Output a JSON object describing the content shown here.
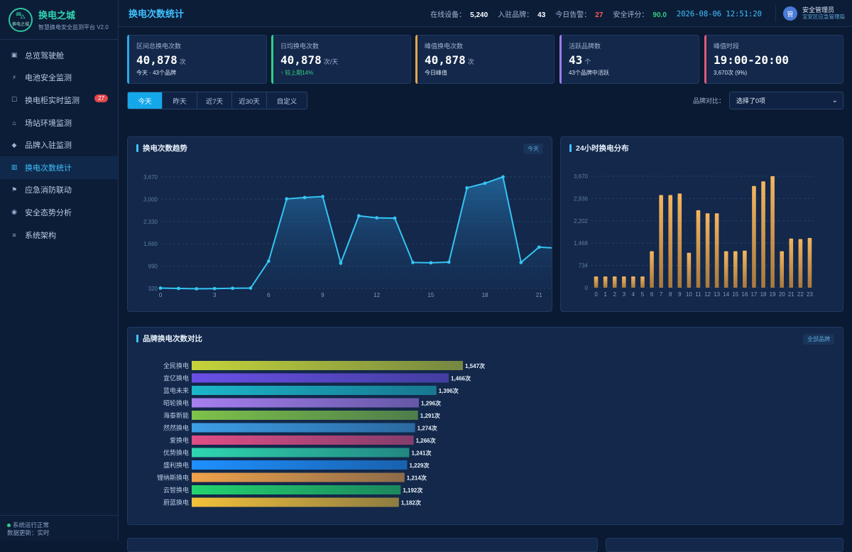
{
  "app": {
    "name": "换电之城",
    "subtitle": "智慧换电安全监测平台 V2.0",
    "logo_text": "换电之城"
  },
  "sidebar": {
    "items": [
      {
        "label": "总览驾驶舱",
        "icon": "dashboard-icon",
        "glyph": "▣"
      },
      {
        "label": "电池安全监测",
        "icon": "lightning-icon",
        "glyph": "⚡"
      },
      {
        "label": "换电柜实时监测",
        "icon": "cabinet-icon",
        "glyph": "☐",
        "badge": "27"
      },
      {
        "label": "场站环境监测",
        "icon": "home-icon",
        "glyph": "⌂"
      },
      {
        "label": "品牌入驻监测",
        "icon": "diamond-icon",
        "glyph": "◆"
      },
      {
        "label": "换电次数统计",
        "icon": "chart-icon",
        "glyph": "▥"
      },
      {
        "label": "应急消防联动",
        "icon": "flag-icon",
        "glyph": "⚑"
      },
      {
        "label": "安全态势分析",
        "icon": "radar-icon",
        "glyph": "◉"
      },
      {
        "label": "系统架构",
        "icon": "menu-icon",
        "glyph": "≡"
      }
    ],
    "footer_status": "系统运行正常",
    "footer_update": "数据更新：实时"
  },
  "header": {
    "title": "换电次数统计",
    "online_label": "在线设备：",
    "online_value": "5,240",
    "brands_label": "入驻品牌：",
    "brands_value": "43",
    "alarms_label": "今日告警：",
    "alarms_value": "27",
    "score_label": "安全评分：",
    "score_value": "90.0",
    "datetime": "2026-08-06 12:51:20",
    "user_avatar": "管",
    "user_name": "安全管理员",
    "user_org": "宝安区应急管理局"
  },
  "stats": [
    {
      "label": "区间总换电次数",
      "value": "40,878",
      "unit": "次",
      "note": "今天 · 43个品牌"
    },
    {
      "label": "日均换电次数",
      "value": "40,878",
      "unit": "次/天",
      "note": "↑ 较上期14%"
    },
    {
      "label": "峰值换电次数",
      "value": "40,878",
      "unit": "次",
      "note": "今日峰值"
    },
    {
      "label": "活跃品牌数",
      "value": "43",
      "unit": "个",
      "note": "43个品牌中活跃"
    },
    {
      "label": "峰值时段",
      "value": "19:00-20:00",
      "unit": "",
      "note": "3,670次 (9%)"
    }
  ],
  "range_tabs": [
    "今天",
    "昨天",
    "近7天",
    "近30天",
    "自定义"
  ],
  "compare": {
    "label": "品牌对比：",
    "value": "选择了0项"
  },
  "panels": {
    "trend_title": "换电次数趋势",
    "trend_tag": "今天",
    "hourly_title": "24小时换电分布",
    "brand_title": "品牌换电次数对比",
    "brand_tag": "全部品牌"
  },
  "colors": {
    "accent": "#3fc2ff",
    "line": "#35c4f4",
    "bar": "#e6a04a",
    "alarm": "#ff5b5b",
    "good": "#35d07f"
  },
  "chart_data": [
    {
      "type": "area",
      "x": [
        0,
        1,
        2,
        3,
        4,
        5,
        6,
        7,
        8,
        9,
        10,
        11,
        12,
        13,
        14,
        15,
        16,
        17,
        18,
        19,
        20,
        21
      ],
      "values": [
        330,
        320,
        310,
        315,
        325,
        330,
        1140,
        3010,
        3050,
        3080,
        1080,
        2500,
        2440,
        2430,
        1100,
        1090,
        1110,
        3340,
        3480,
        3670,
        1100,
        1560
      ],
      "y_ticks": [
        320,
        990,
        1660,
        2330,
        3000,
        3670
      ],
      "x_ticks": [
        0,
        3,
        6,
        9,
        12,
        15,
        18,
        21
      ],
      "ylim": [
        320,
        3670
      ],
      "grid": true
    },
    {
      "type": "bar",
      "categories": [
        "0",
        "1",
        "2",
        "3",
        "4",
        "5",
        "6",
        "7",
        "8",
        "9",
        "10",
        "11",
        "12",
        "13",
        "14",
        "15",
        "16",
        "17",
        "18",
        "19",
        "20",
        "21",
        "22",
        "23"
      ],
      "values": [
        370,
        370,
        370,
        370,
        370,
        370,
        1200,
        3050,
        3050,
        3100,
        1150,
        2550,
        2450,
        2450,
        1200,
        1200,
        1220,
        3350,
        3500,
        3670,
        1200,
        1620,
        1600,
        1640
      ],
      "y_ticks": [
        0,
        734,
        1468,
        2202,
        2936,
        3670
      ],
      "ylim": [
        0,
        3670
      ],
      "grid": true
    },
    {
      "type": "bar",
      "orientation": "horizontal",
      "categories": [
        "全民换电",
        "宜亿换电",
        "蓝电未来",
        "昭轮换电",
        "海泰新能",
        "然然换电",
        "爱换电",
        "优势换电",
        "盛利换电",
        "锂纳斯换电",
        "云智换电",
        "蔚蓝换电"
      ],
      "values": [
        1547,
        1466,
        1396,
        1296,
        1291,
        1274,
        1266,
        1241,
        1229,
        1214,
        1192,
        1182
      ],
      "value_labels": [
        "1,547次",
        "1,466次",
        "1,396次",
        "1,296次",
        "1,291次",
        "1,274次",
        "1,266次",
        "1,241次",
        "1,229次",
        "1,214次",
        "1,192次",
        "1,182次"
      ],
      "colors": [
        "#c5d43a",
        "#6a4fe6",
        "#1bb7c9",
        "#a77ff0",
        "#7ec24a",
        "#3d9ee6",
        "#e04e86",
        "#2fd6b0",
        "#1e90ff",
        "#f0a24a",
        "#22d46e",
        "#f2c13a"
      ]
    }
  ]
}
